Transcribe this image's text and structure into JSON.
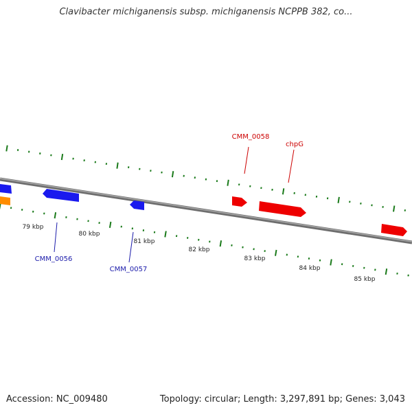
{
  "title": "Clavibacter michiganensis subsp. michiganensis NCPPB 382, co...",
  "footer": {
    "accession": "Accession: NC_009480",
    "summary": "Topology: circular; Length: 3,297,891 bp; Genes: 3,043"
  },
  "colors": {
    "backbone": "#8a8a8a",
    "tick": "#1a7a1a",
    "forward_gene": "#ee0000",
    "reverse_gene": "#1a1aee",
    "other_gene": "#ff8c00",
    "forward_label": "#cc0000",
    "reverse_label": "#1a1aaa"
  },
  "scale": {
    "labels": [
      "79 kbp",
      "80 kbp",
      "81 kbp",
      "82 kbp",
      "83 kbp",
      "84 kbp",
      "85 kbp"
    ]
  },
  "gene_labels": {
    "cmm_0058": "CMM_0058",
    "chpg": "chpG",
    "cmm_0056": "CMM_0056",
    "cmm_0057": "CMM_0057"
  }
}
